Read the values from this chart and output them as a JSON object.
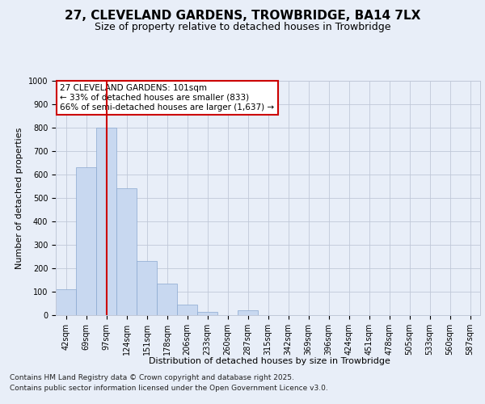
{
  "title_line1": "27, CLEVELAND GARDENS, TROWBRIDGE, BA14 7LX",
  "title_line2": "Size of property relative to detached houses in Trowbridge",
  "xlabel": "Distribution of detached houses by size in Trowbridge",
  "ylabel": "Number of detached properties",
  "bar_labels": [
    "42sqm",
    "69sqm",
    "97sqm",
    "124sqm",
    "151sqm",
    "178sqm",
    "206sqm",
    "233sqm",
    "260sqm",
    "287sqm",
    "315sqm",
    "342sqm",
    "369sqm",
    "396sqm",
    "424sqm",
    "451sqm",
    "478sqm",
    "505sqm",
    "533sqm",
    "560sqm",
    "587sqm"
  ],
  "bar_values": [
    110,
    630,
    800,
    540,
    230,
    135,
    45,
    15,
    0,
    20,
    0,
    0,
    0,
    0,
    0,
    0,
    0,
    0,
    0,
    0,
    0
  ],
  "bar_color": "#c8d8f0",
  "bar_edge_color": "#8aa8d0",
  "bar_width": 1.0,
  "vline_x": 2,
  "vline_color": "#cc0000",
  "annotation_text": "27 CLEVELAND GARDENS: 101sqm\n← 33% of detached houses are smaller (833)\n66% of semi-detached houses are larger (1,637) →",
  "annotation_box_edgecolor": "#cc0000",
  "ylim": [
    0,
    1000
  ],
  "yticks": [
    0,
    100,
    200,
    300,
    400,
    500,
    600,
    700,
    800,
    900,
    1000
  ],
  "bg_color": "#e8eef8",
  "plot_bg_color": "#e8eef8",
  "footer_line1": "Contains HM Land Registry data © Crown copyright and database right 2025.",
  "footer_line2": "Contains public sector information licensed under the Open Government Licence v3.0.",
  "grid_color": "#c0c8d8",
  "title_fontsize": 11,
  "subtitle_fontsize": 9,
  "tick_fontsize": 7,
  "ylabel_fontsize": 8,
  "xlabel_fontsize": 8,
  "annotation_fontsize": 7.5,
  "footer_fontsize": 6.5
}
